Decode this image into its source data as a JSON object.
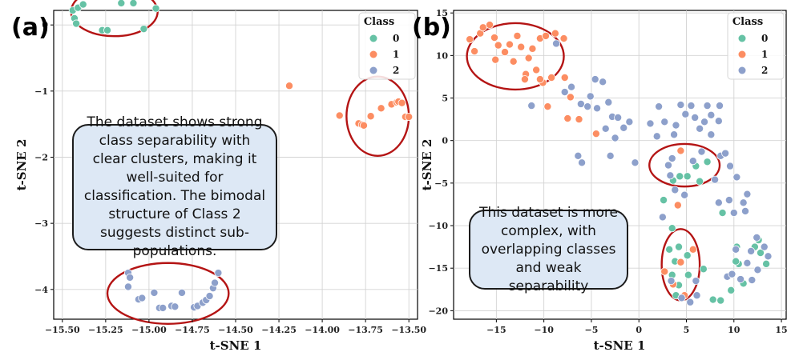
{
  "colors": {
    "class0": "#66c2a5",
    "class1": "#fc8d62",
    "class2": "#8da0cb",
    "ellipse": "#b41414"
  },
  "legend": {
    "title": "Class",
    "labels": [
      "0",
      "1",
      "2"
    ]
  },
  "callouts": {
    "a": "The dataset shows strong class separability with clear clusters, making it well-suited for classification. The bimodal structure of Class 2 suggests distinct sub-populations.",
    "b": "This dataset is more complex, with overlapping classes and weak separability"
  },
  "chart_data": [
    {
      "panel": "(a)",
      "type": "scatter",
      "xlabel": "t-SNE 1",
      "ylabel": "t-SNE 2",
      "xlim": [
        -15.55,
        -13.45
      ],
      "ylim": [
        -4.45,
        0.22
      ],
      "xticks": [
        -15.5,
        -15.25,
        -15.0,
        -14.75,
        -14.5,
        -14.25,
        -14.0,
        -13.75,
        -13.5
      ],
      "xtick_labels": [
        "−15.50",
        "−15.25",
        "−15.00",
        "−14.75",
        "−14.50",
        "−14.25",
        "−14.00",
        "−13.75",
        "−13.50"
      ],
      "yticks": [
        0,
        -1,
        -2,
        -3,
        -4
      ],
      "ytick_labels": [
        "0",
        "−1",
        "−2",
        "−3",
        "−4"
      ],
      "legend_position": "top-right",
      "series": [
        {
          "name": "0",
          "points": [
            [
              -15.43,
              0.1
            ],
            [
              -15.44,
              0.22
            ],
            [
              -15.41,
              0.26
            ],
            [
              -15.38,
              0.31
            ],
            [
              -15.42,
              0.02
            ],
            [
              -15.27,
              -0.08
            ],
            [
              -15.24,
              -0.08
            ],
            [
              -15.16,
              0.33
            ],
            [
              -15.09,
              0.33
            ],
            [
              -15.03,
              -0.06
            ],
            [
              -14.96,
              0.25
            ]
          ]
        },
        {
          "name": "1",
          "points": [
            [
              -14.19,
              -0.92
            ],
            [
              -13.9,
              -1.37
            ],
            [
              -13.79,
              -1.49
            ],
            [
              -13.77,
              -1.51
            ],
            [
              -13.76,
              -1.52
            ],
            [
              -13.72,
              -1.38
            ],
            [
              -13.66,
              -1.26
            ],
            [
              -13.6,
              -1.2
            ],
            [
              -13.57,
              -1.17
            ],
            [
              -13.56,
              -1.16
            ],
            [
              -13.54,
              -1.18
            ],
            [
              -13.52,
              -1.39
            ],
            [
              -13.5,
              -1.39
            ]
          ]
        },
        {
          "name": "2",
          "points": [
            [
              -15.12,
              -3.75
            ],
            [
              -15.11,
              -3.82
            ],
            [
              -15.12,
              -3.96
            ],
            [
              -15.06,
              -4.15
            ],
            [
              -15.04,
              -4.13
            ],
            [
              -14.97,
              -4.05
            ],
            [
              -14.94,
              -4.28
            ],
            [
              -14.92,
              -4.28
            ],
            [
              -14.87,
              -4.25
            ],
            [
              -14.85,
              -4.26
            ],
            [
              -14.81,
              -4.05
            ],
            [
              -14.74,
              -4.27
            ],
            [
              -14.72,
              -4.25
            ],
            [
              -14.69,
              -4.2
            ],
            [
              -14.67,
              -4.16
            ],
            [
              -14.65,
              -4.1
            ],
            [
              -14.63,
              -3.98
            ],
            [
              -14.62,
              -3.9
            ],
            [
              -14.6,
              -3.75
            ]
          ]
        }
      ],
      "highlight_ellipses": [
        {
          "center": [
            -15.2,
            0.2
          ],
          "radius": [
            0.25,
            0.37
          ]
        },
        {
          "center": [
            -13.68,
            -1.38
          ],
          "radius": [
            0.18,
            0.6
          ]
        },
        {
          "center": [
            -14.89,
            -4.06
          ],
          "radius": [
            0.35,
            0.46
          ]
        }
      ]
    },
    {
      "panel": "(b)",
      "type": "scatter",
      "xlabel": "t-SNE 1",
      "ylabel": "t-SNE 2",
      "xlim": [
        -19.5,
        15.5
      ],
      "ylim": [
        -21,
        15.3
      ],
      "xticks": [
        -15,
        -10,
        -5,
        0,
        5,
        10,
        15
      ],
      "xtick_labels": [
        "−15",
        "−10",
        "−5",
        "0",
        "5",
        "10",
        "15"
      ],
      "yticks": [
        15,
        10,
        5,
        0,
        -5,
        -10,
        -15,
        -20
      ],
      "ytick_labels": [
        "15",
        "10",
        "5",
        "0",
        "−5",
        "−10",
        "−15",
        "−20"
      ],
      "legend_position": "top-right",
      "series": [
        {
          "name": "0",
          "points": [
            [
              2.6,
              -7
            ],
            [
              3.6,
              -4.7
            ],
            [
              4.3,
              -4.2
            ],
            [
              5.1,
              -4.2
            ],
            [
              6,
              -3
            ],
            [
              6.4,
              -4.8
            ],
            [
              7.2,
              -2.5
            ],
            [
              8.8,
              -8.5
            ],
            [
              3.5,
              -10.3
            ],
            [
              3.2,
              -12.8
            ],
            [
              4.2,
              -12.5
            ],
            [
              3.8,
              -14.2
            ],
            [
              5.1,
              -13.5
            ],
            [
              3.5,
              -15.8
            ],
            [
              5.2,
              -15.8
            ],
            [
              6.8,
              -15.1
            ],
            [
              4.2,
              -17
            ],
            [
              3.9,
              -18.2
            ],
            [
              7.8,
              -18.7
            ],
            [
              8.6,
              -18.8
            ],
            [
              9.7,
              -17.6
            ],
            [
              10.3,
              -12.5
            ],
            [
              10.5,
              -14.5
            ],
            [
              11,
              -16.8
            ],
            [
              12.2,
              -12.5
            ],
            [
              12.6,
              -11.7
            ],
            [
              13.4,
              -14.5
            ],
            [
              12.8,
              -13.2
            ],
            [
              10.2,
              -14.2
            ]
          ]
        },
        {
          "name": "1",
          "points": [
            [
              -17.8,
              11.9
            ],
            [
              -17.3,
              10.5
            ],
            [
              -16.7,
              12.6
            ],
            [
              -16.4,
              13.3
            ],
            [
              -15.7,
              13.6
            ],
            [
              -15.2,
              12.1
            ],
            [
              -14.8,
              11.2
            ],
            [
              -14.1,
              10.4
            ],
            [
              -13.6,
              11.3
            ],
            [
              -13.2,
              9.3
            ],
            [
              -12.8,
              12.3
            ],
            [
              -12.4,
              11
            ],
            [
              -11.6,
              9.7
            ],
            [
              -11.2,
              10.8
            ],
            [
              -10.4,
              12
            ],
            [
              -9.8,
              12.3
            ],
            [
              -8.8,
              12.6
            ],
            [
              -7.9,
              12
            ],
            [
              -15.1,
              9.5
            ],
            [
              -11.9,
              7.8
            ],
            [
              -10.8,
              8.3
            ],
            [
              -12,
              7.2
            ],
            [
              -10.1,
              6.8
            ],
            [
              -10.4,
              7.2
            ],
            [
              -9.2,
              7.4
            ],
            [
              -7.8,
              7.4
            ],
            [
              -7.5,
              2.6
            ],
            [
              -6.3,
              2.5
            ],
            [
              -7.2,
              5.1
            ],
            [
              -9.6,
              4
            ],
            [
              -4.5,
              0.8
            ],
            [
              4.4,
              -1.2
            ],
            [
              4.1,
              -7.6
            ],
            [
              2.7,
              -15.4
            ],
            [
              3.6,
              -16.9
            ],
            [
              4.4,
              -14.3
            ],
            [
              5.7,
              -12.8
            ],
            [
              4.8,
              -18.2
            ]
          ]
        },
        {
          "name": "2",
          "points": [
            [
              -8.7,
              11.4
            ],
            [
              -7.8,
              5.7
            ],
            [
              -7.1,
              6.3
            ],
            [
              -11.3,
              4.1
            ],
            [
              -6.1,
              4.3
            ],
            [
              -5.4,
              4
            ],
            [
              -4.4,
              3.8
            ],
            [
              -5.1,
              5.2
            ],
            [
              -4.6,
              7.2
            ],
            [
              -3.8,
              6.9
            ],
            [
              -3.2,
              4.5
            ],
            [
              -2.8,
              2.8
            ],
            [
              -3.5,
              1.4
            ],
            [
              -2.2,
              2.7
            ],
            [
              -1.6,
              1.5
            ],
            [
              -1,
              2.2
            ],
            [
              -3,
              -1.8
            ],
            [
              -2.5,
              0.3
            ],
            [
              -6.4,
              -1.8
            ],
            [
              -6,
              -2.6
            ],
            [
              -0.4,
              -2.6
            ],
            [
              1.2,
              2
            ],
            [
              1.9,
              0.5
            ],
            [
              2.1,
              4
            ],
            [
              2.7,
              2.2
            ],
            [
              3.7,
              0.7
            ],
            [
              3.9,
              1.8
            ],
            [
              4.4,
              4.2
            ],
            [
              4.9,
              3.1
            ],
            [
              5.5,
              4.1
            ],
            [
              5.9,
              2.7
            ],
            [
              6.4,
              1.4
            ],
            [
              6.6,
              -1.3
            ],
            [
              6.9,
              2.2
            ],
            [
              7.2,
              4.1
            ],
            [
              7.6,
              3
            ],
            [
              8.4,
              2.3
            ],
            [
              8.5,
              4.1
            ],
            [
              7.6,
              0.7
            ],
            [
              8.6,
              -1.8
            ],
            [
              9.1,
              -1.5
            ],
            [
              9.6,
              -3
            ],
            [
              10.3,
              -4.3
            ],
            [
              11,
              -7.3
            ],
            [
              9.5,
              -7
            ],
            [
              8.4,
              -7.3
            ],
            [
              10,
              -8.5
            ],
            [
              11.4,
              -6.3
            ],
            [
              11.2,
              -8.3
            ],
            [
              8,
              -4.6
            ],
            [
              2.5,
              -9
            ],
            [
              3.5,
              -2.1
            ],
            [
              3.3,
              -4.1
            ],
            [
              4.8,
              -6.4
            ],
            [
              5.7,
              -2.4
            ],
            [
              3.1,
              -2.9
            ],
            [
              3.8,
              -5.8
            ],
            [
              3.4,
              -16.5
            ],
            [
              4.5,
              -18.5
            ],
            [
              5.4,
              -19
            ],
            [
              6.1,
              -18.2
            ],
            [
              6,
              -16.5
            ],
            [
              9.3,
              -16
            ],
            [
              10.2,
              -12.8
            ],
            [
              10.7,
              -16.3
            ],
            [
              11.4,
              -14.4
            ],
            [
              11.8,
              -13
            ],
            [
              12.5,
              -15.2
            ],
            [
              9.8,
              -15.7
            ],
            [
              11.9,
              -16.4
            ],
            [
              12.4,
              -11.4
            ],
            [
              13.2,
              -12.5
            ],
            [
              13.6,
              -13.6
            ]
          ]
        }
      ],
      "highlight_ellipses": [
        {
          "center": [
            -13,
            9.9
          ],
          "radius": [
            5.1,
            3.9
          ]
        },
        {
          "center": [
            4.8,
            -2.9
          ],
          "radius": [
            3.7,
            2.5
          ]
        },
        {
          "center": [
            4.4,
            -14.6
          ],
          "radius": [
            2,
            4.2
          ]
        }
      ]
    }
  ]
}
